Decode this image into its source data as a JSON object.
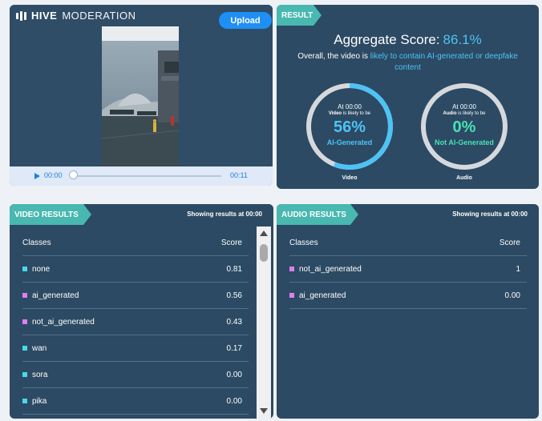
{
  "header": {
    "brand_bold": "HIVE",
    "brand_light": "MODERATION",
    "upload_label": "Upload"
  },
  "player": {
    "current_time": "00:00",
    "duration": "00:11",
    "progress": 0
  },
  "result": {
    "tab_label": "RESULT",
    "aggregate_label": "Aggregate Score:",
    "aggregate_value": "86.1%",
    "overall_prefix": "Overall, the video is",
    "overall_highlight": "likely to contain AI-generated or deepfake content",
    "video_gauge": {
      "at": "At 00:00",
      "likely_bold": "Video",
      "likely_rest": "is likely to be",
      "percent": "56%",
      "label": "AI-Generated",
      "caption": "Video",
      "fraction": 0.56,
      "color": "#4dc3f5"
    },
    "audio_gauge": {
      "at": "At 00:00",
      "likely_bold": "Audio",
      "likely_rest": "is likely to be",
      "percent": "0%",
      "label": "Not AI-Generated",
      "caption": "Audio",
      "fraction": 0,
      "color": "#49e0b5"
    }
  },
  "video_results": {
    "tab_label": "VIDEO RESULTS",
    "showing": "Showing results at 00:00",
    "col_classes": "Classes",
    "col_score": "Score",
    "rows": [
      {
        "cls": "none",
        "score": "0.81",
        "color": "#49d8e8"
      },
      {
        "cls": "ai_generated",
        "score": "0.56",
        "color": "#e07ef0"
      },
      {
        "cls": "not_ai_generated",
        "score": "0.43",
        "color": "#e07ef0"
      },
      {
        "cls": "wan",
        "score": "0.17",
        "color": "#49d8e8"
      },
      {
        "cls": "sora",
        "score": "0.00",
        "color": "#49d8e8"
      },
      {
        "cls": "pika",
        "score": "0.00",
        "color": "#49d8e8"
      }
    ]
  },
  "audio_results": {
    "tab_label": "AUDIO RESULTS",
    "showing": "Showing results at 00:00",
    "col_classes": "Classes",
    "col_score": "Score",
    "rows": [
      {
        "cls": "not_ai_generated",
        "score": "1",
        "color": "#e07ef0"
      },
      {
        "cls": "ai_generated",
        "score": "0.00",
        "color": "#e07ef0"
      }
    ]
  }
}
